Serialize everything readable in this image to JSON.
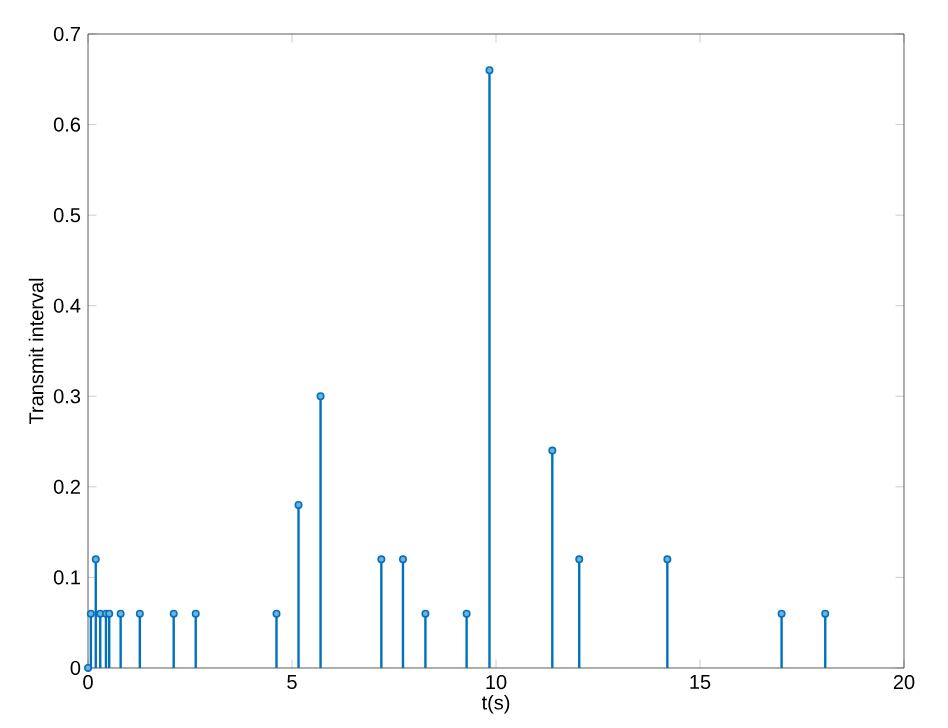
{
  "chart_data": {
    "type": "lollipop",
    "xlabel": "t(s)",
    "ylabel": "Transmit interval",
    "color": "#0072bd",
    "marker": "circle",
    "grid": false,
    "x": [
      0,
      0.07,
      0.19,
      0.3,
      0.44,
      0.52,
      0.8,
      1.27,
      2.1,
      2.64,
      4.62,
      5.16,
      5.7,
      7.19,
      7.72,
      8.27,
      9.28,
      9.84,
      11.38,
      12.04,
      14.2,
      17.0,
      18.07
    ],
    "values": [
      0,
      0.06,
      0.12,
      0.06,
      0.06,
      0.06,
      0.06,
      0.06,
      0.06,
      0.06,
      0.06,
      0.18,
      0.3,
      0.12,
      0.12,
      0.06,
      0.06,
      0.66,
      0.24,
      0.12,
      0.12,
      0.06,
      0.06
    ],
    "xlim": [
      0,
      20
    ],
    "ylim": [
      0,
      0.7
    ],
    "xticks": [
      0,
      5,
      10,
      15,
      20
    ],
    "yticks": [
      0,
      0.1,
      0.2,
      0.3,
      0.4,
      0.5,
      0.6,
      0.7
    ]
  }
}
